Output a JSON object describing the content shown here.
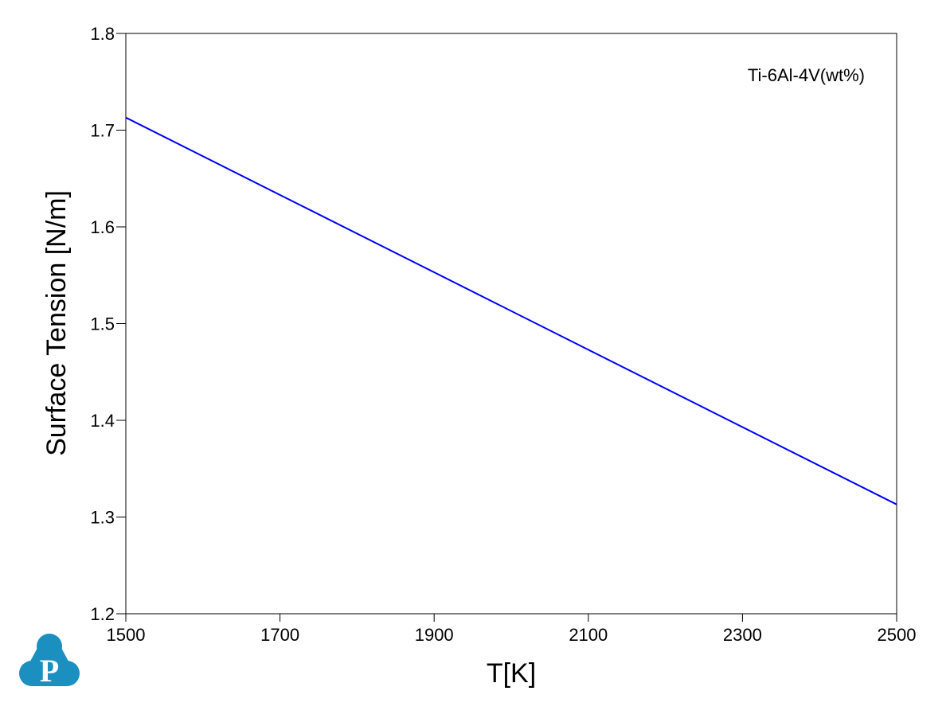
{
  "chart_data": {
    "type": "line",
    "title": "",
    "xlabel": "T[K]",
    "ylabel": "Surface Tension [N/m]",
    "xlim": [
      1500,
      2500
    ],
    "ylim": [
      1.2,
      1.8
    ],
    "x_ticks": [
      "1500",
      "1700",
      "1900",
      "2100",
      "2300",
      "2500"
    ],
    "y_ticks": [
      "1.2",
      "1.3",
      "1.4",
      "1.5",
      "1.6",
      "1.7",
      "1.8"
    ],
    "grid": false,
    "annotation": "Ti-6Al-4V(wt%)",
    "series": [
      {
        "color": "#0000ff",
        "x": [
          1500,
          2500
        ],
        "y": [
          1.713,
          1.313
        ]
      }
    ]
  },
  "logo": {
    "letter": "P",
    "color": "#1a8fc0"
  }
}
